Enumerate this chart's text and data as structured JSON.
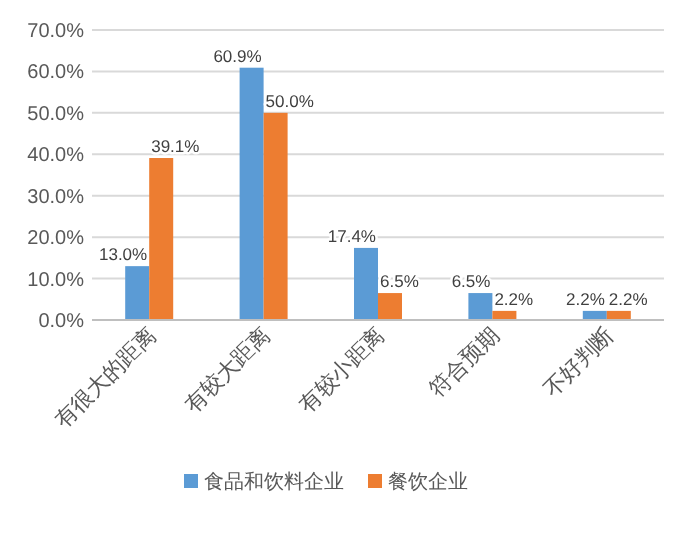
{
  "chart_data": {
    "type": "bar",
    "categories": [
      "有很大的距离",
      "有较大距离",
      "有较小距离",
      "符合预期",
      "不好判断"
    ],
    "series": [
      {
        "name": "食品和饮料企业",
        "color": "#5b9bd5",
        "values": [
          13.0,
          60.9,
          17.4,
          6.5,
          2.2
        ],
        "value_labels": [
          "13.0%",
          "60.9%",
          "17.4%",
          "6.5%",
          "2.2%"
        ]
      },
      {
        "name": "餐饮企业",
        "color": "#ed7d31",
        "values": [
          39.1,
          50.0,
          6.5,
          2.2,
          2.2
        ],
        "value_labels": [
          "39.1%",
          "50.0%",
          "6.5%",
          "2.2%",
          "2.2%"
        ]
      }
    ],
    "ylim": [
      0,
      70
    ],
    "yticks": [
      {
        "value": 0,
        "label": "0.0%"
      },
      {
        "value": 10,
        "label": "10.0%"
      },
      {
        "value": 20,
        "label": "20.0%"
      },
      {
        "value": 30,
        "label": "30.0%"
      },
      {
        "value": 40,
        "label": "40.0%"
      },
      {
        "value": 50,
        "label": "50.0%"
      },
      {
        "value": 60,
        "label": "60.0%"
      },
      {
        "value": 70,
        "label": "70.0%"
      }
    ],
    "grid": "y",
    "legend": "bottom"
  }
}
